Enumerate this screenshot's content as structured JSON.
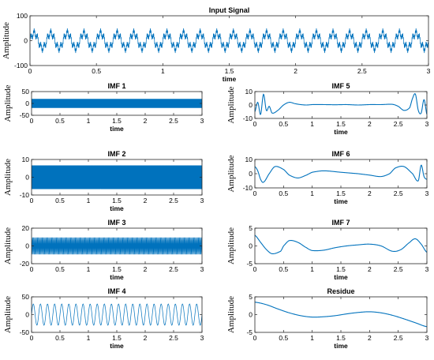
{
  "chart_data": [
    {
      "id": "input",
      "type": "line",
      "title": "Input Signal",
      "xlabel": "time",
      "ylabel": "Amplitude",
      "xlim": [
        0,
        3
      ],
      "ylim": [
        -100,
        100
      ],
      "xticks": [
        "0",
        "0.5",
        "1",
        "1.5",
        "2",
        "2.5",
        "3"
      ],
      "yticks": [
        "100",
        "0",
        "-100"
      ],
      "color": "#0072bd",
      "grid": false,
      "series": [
        {
          "waveform": "sum of sinusoids",
          "components": [
            {
              "amplitude": 30,
              "frequency_hz": 8
            },
            {
              "amplitude": 12,
              "frequency_hz": 40
            },
            {
              "amplitude": 8,
              "frequency_hz": 200
            }
          ]
        }
      ]
    },
    {
      "id": "imf1",
      "type": "line",
      "title": "IMF 1",
      "xlabel": "time",
      "ylabel": "Amplitude",
      "xlim": [
        0,
        3
      ],
      "ylim": [
        -50,
        50
      ],
      "xticks": [
        "0",
        "0.5",
        "1",
        "1.5",
        "2",
        "2.5",
        "3"
      ],
      "yticks": [
        "50",
        "0",
        "-50"
      ],
      "color": "#0072bd",
      "grid": false,
      "series": [
        {
          "waveform": "high-frequency oscillation",
          "amplitude": 20,
          "frequency_hz": 200
        }
      ]
    },
    {
      "id": "imf2",
      "type": "line",
      "title": "IMF 2",
      "xlabel": "time",
      "ylabel": "Amplitude",
      "xlim": [
        0,
        3
      ],
      "ylim": [
        -10,
        10
      ],
      "xticks": [
        "0",
        "0.5",
        "1",
        "1.5",
        "2",
        "2.5",
        "3"
      ],
      "yticks": [
        "10",
        "0",
        "-10"
      ],
      "color": "#0072bd",
      "grid": false,
      "series": [
        {
          "waveform": "high-frequency oscillation",
          "amplitude": 7,
          "frequency_hz": 100
        }
      ]
    },
    {
      "id": "imf3",
      "type": "line",
      "title": "IMF 3",
      "xlabel": "time",
      "ylabel": "Amplitude",
      "xlim": [
        0,
        3
      ],
      "ylim": [
        -20,
        20
      ],
      "xticks": [
        "0",
        "0.5",
        "1",
        "1.5",
        "2",
        "2.5",
        "3"
      ],
      "yticks": [
        "20",
        "0",
        "-20"
      ],
      "color": "#0072bd",
      "grid": false,
      "series": [
        {
          "waveform": "high-frequency oscillation",
          "amplitude": 10,
          "frequency_hz": 60
        }
      ]
    },
    {
      "id": "imf4",
      "type": "line",
      "title": "IMF 4",
      "xlabel": "time",
      "ylabel": "Amplitude",
      "xlim": [
        0,
        3
      ],
      "ylim": [
        -50,
        50
      ],
      "xticks": [
        "0",
        "0.5",
        "1",
        "1.5",
        "2",
        "2.5",
        "3"
      ],
      "yticks": [
        "50",
        "0",
        "-50"
      ],
      "color": "#0072bd",
      "grid": false,
      "series": [
        {
          "waveform": "sinusoid",
          "amplitude": 30,
          "frequency_hz": 8
        }
      ]
    },
    {
      "id": "imf5",
      "type": "line",
      "title": "IMF 5",
      "xlabel": "time",
      "ylabel": "Amplitude",
      "xlim": [
        0,
        3
      ],
      "ylim": [
        -10,
        10
      ],
      "xticks": [
        "0",
        "0.5",
        "1",
        "1.5",
        "2",
        "2.5",
        "3"
      ],
      "yticks": [
        "10",
        "0",
        "-10"
      ],
      "color": "#0072bd",
      "grid": false,
      "series": [
        {
          "x": [
            0,
            0.05,
            0.1,
            0.15,
            0.2,
            0.25,
            0.3,
            0.4,
            0.5,
            0.6,
            0.7,
            0.8,
            0.9,
            1.0,
            1.2,
            1.4,
            1.6,
            1.8,
            2.0,
            2.2,
            2.4,
            2.5,
            2.6,
            2.7,
            2.75,
            2.8,
            2.85,
            2.9,
            2.95,
            3.0
          ],
          "y": [
            -5,
            2,
            -7,
            8,
            -4,
            -1,
            -6,
            -4,
            0,
            2,
            1,
            0.3,
            0,
            0.3,
            0.3,
            0.2,
            0.3,
            0,
            0.3,
            0.3,
            0.5,
            -1,
            -4,
            -2,
            5,
            8,
            -4,
            -6,
            4,
            -7
          ]
        }
      ]
    },
    {
      "id": "imf6",
      "type": "line",
      "title": "IMF 6",
      "xlabel": "time",
      "ylabel": "Amplitude",
      "xlim": [
        0,
        3
      ],
      "ylim": [
        -10,
        10
      ],
      "xticks": [
        "0",
        "0.5",
        "1",
        "1.5",
        "2",
        "2.5",
        "3"
      ],
      "yticks": [
        "10",
        "0",
        "-10"
      ],
      "color": "#0072bd",
      "grid": false,
      "series": [
        {
          "x": [
            0,
            0.05,
            0.1,
            0.15,
            0.25,
            0.35,
            0.5,
            0.6,
            0.75,
            0.9,
            1.0,
            1.2,
            1.5,
            1.8,
            2.0,
            2.2,
            2.35,
            2.45,
            2.6,
            2.75,
            2.85,
            2.9,
            2.95,
            3.0
          ],
          "y": [
            5,
            2,
            -4,
            -6,
            0,
            5,
            3,
            -1,
            -3,
            -1,
            1,
            2,
            1,
            0,
            -1,
            -2,
            0,
            4,
            5,
            0,
            -5,
            6,
            -2,
            -4
          ]
        }
      ]
    },
    {
      "id": "imf7",
      "type": "line",
      "title": "IMF 7",
      "xlabel": "time",
      "ylabel": "Amplitude",
      "xlim": [
        0,
        3
      ],
      "ylim": [
        -5,
        5
      ],
      "xticks": [
        "0",
        "0.5",
        "1",
        "1.5",
        "2",
        "2.5",
        "3"
      ],
      "yticks": [
        "5",
        "0",
        "-5"
      ],
      "color": "#0072bd",
      "grid": false,
      "series": [
        {
          "x": [
            0,
            0.1,
            0.2,
            0.3,
            0.45,
            0.5,
            0.6,
            0.75,
            0.9,
            1.0,
            1.2,
            1.4,
            1.6,
            1.8,
            2.0,
            2.2,
            2.4,
            2.55,
            2.7,
            2.8,
            2.9,
            3.0
          ],
          "y": [
            3,
            1,
            -1,
            -2.2,
            -1.5,
            0,
            1.5,
            1,
            -0.5,
            -1.3,
            -1.2,
            -0.5,
            0,
            0.3,
            0.5,
            0,
            -1.5,
            -1,
            1,
            2,
            0.5,
            -1.8
          ]
        }
      ]
    },
    {
      "id": "residue",
      "type": "line",
      "title": "Residue",
      "xlabel": "time",
      "ylabel": "Amplitude",
      "xlim": [
        0,
        3
      ],
      "ylim": [
        -5,
        5
      ],
      "xticks": [
        "0",
        "0.5",
        "1",
        "1.5",
        "2",
        "2.5",
        "3"
      ],
      "yticks": [
        "5",
        "0",
        "-5"
      ],
      "color": "#0072bd",
      "grid": false,
      "series": [
        {
          "x": [
            0,
            0.2,
            0.4,
            0.6,
            0.8,
            1.0,
            1.2,
            1.4,
            1.6,
            1.8,
            2.0,
            2.2,
            2.4,
            2.6,
            2.8,
            3.0
          ],
          "y": [
            3.5,
            2.8,
            1.6,
            0.5,
            -0.3,
            -0.7,
            -0.6,
            -0.3,
            0.2,
            0.6,
            0.8,
            0.5,
            -0.2,
            -1.2,
            -2.3,
            -3.4
          ]
        }
      ]
    }
  ]
}
